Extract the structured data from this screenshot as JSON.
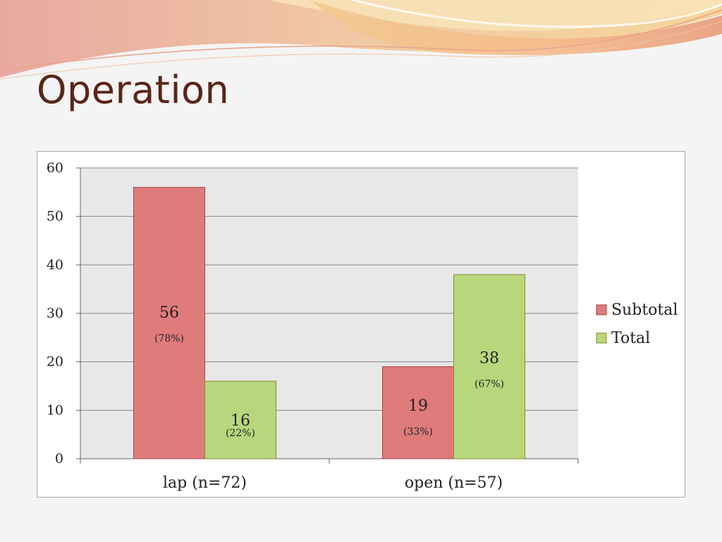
{
  "slide": {
    "title": "Operation"
  },
  "colors": {
    "subtotal": "#e07b7b",
    "subtotal_stroke": "#9a4a4a",
    "total": "#b8d77c",
    "total_stroke": "#8a8a2a",
    "plot_bg": "#e8e8e8",
    "grid": "#888888"
  },
  "chart_data": {
    "type": "bar",
    "categories": [
      "lap (n=72)",
      "open (n=57)"
    ],
    "series": [
      {
        "name": "Subtotal",
        "values": [
          56,
          19
        ],
        "labels": [
          "56",
          "19"
        ],
        "pct_labels": [
          "(78%)",
          "(33%)"
        ]
      },
      {
        "name": "Total",
        "values": [
          16,
          38
        ],
        "labels": [
          "16",
          "38"
        ],
        "pct_labels": [
          "(22%)",
          "(67%)"
        ]
      }
    ],
    "ylim": [
      0,
      60
    ],
    "yticks": [
      0,
      10,
      20,
      30,
      40,
      50,
      60
    ],
    "grid": true,
    "legend": "right"
  }
}
